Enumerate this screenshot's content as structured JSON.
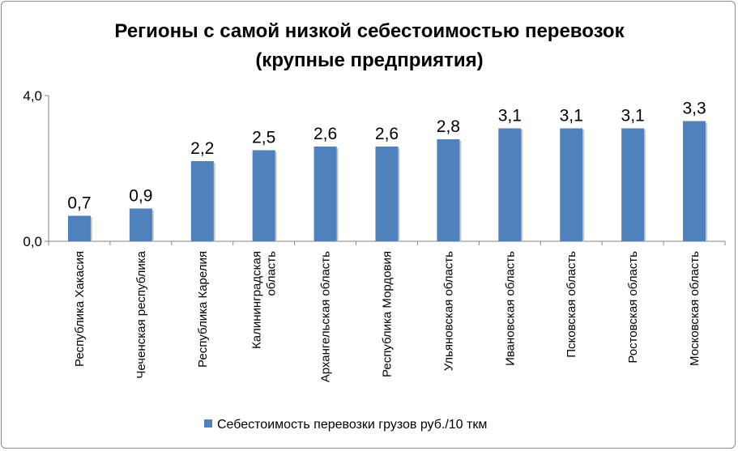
{
  "chart_data": {
    "type": "bar",
    "title_lines": [
      "Регионы с самой низкой себестоимостью перевозок",
      "(крупные предприятия)"
    ],
    "categories": [
      [
        "Республика Хакасия"
      ],
      [
        "Чеченская республика"
      ],
      [
        "Республика Карелия"
      ],
      [
        "Калининградская",
        "область"
      ],
      [
        "Архангельская область"
      ],
      [
        "Республика Мордовия"
      ],
      [
        "Ульяновская область"
      ],
      [
        "Ивановская область"
      ],
      [
        "Псковская область"
      ],
      [
        "Ростовская область"
      ],
      [
        "Московская область"
      ]
    ],
    "series": [
      {
        "name": "Себестоимость перевозки грузов руб./10 ткм",
        "values": [
          0.7,
          0.9,
          2.2,
          2.5,
          2.6,
          2.6,
          2.8,
          3.1,
          3.1,
          3.1,
          3.3
        ],
        "data_labels": [
          "0,7",
          "0,9",
          "2,2",
          "2,5",
          "2,6",
          "2,6",
          "2,8",
          "3,1",
          "3,1",
          "3,1",
          "3,3"
        ],
        "color": "#4f81bd"
      }
    ],
    "ylim": [
      0,
      4
    ],
    "yticks": [
      0,
      4
    ],
    "ytick_labels": [
      "0,0",
      "4,0"
    ],
    "grid": false,
    "legend_position": "bottom"
  }
}
